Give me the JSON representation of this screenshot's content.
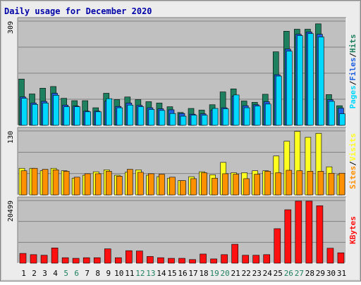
{
  "title": "Daily usage for December 2020",
  "colors": {
    "hits": "#1f8060",
    "files": "#2060e0",
    "pages": "#00d8ff",
    "visits": "#ffff20",
    "sites": "#ff9000",
    "kbytes": "#ff1010",
    "title": "#0000a8",
    "weekend_label": "#1f8060",
    "weekday_label": "#000000"
  },
  "chart_data": [
    {
      "type": "bar",
      "panel": "hits-files-pages",
      "ylabel_parts": [
        "Pages",
        "/",
        "Files",
        "/",
        "Hits"
      ],
      "ymax_label": "309",
      "ylim": [
        0,
        309
      ],
      "categories": [
        "1",
        "2",
        "3",
        "4",
        "5",
        "6",
        "7",
        "8",
        "9",
        "10",
        "11",
        "12",
        "13",
        "14",
        "15",
        "16",
        "17",
        "18",
        "19",
        "20",
        "21",
        "22",
        "23",
        "24",
        "25",
        "26",
        "27",
        "28",
        "29",
        "30",
        "31"
      ],
      "weekend_days": [
        "5",
        "6",
        "12",
        "13",
        "19",
        "20",
        "26",
        "27"
      ],
      "series": [
        {
          "name": "Hits",
          "values": [
            137,
            93,
            110,
            115,
            80,
            73,
            73,
            52,
            95,
            76,
            84,
            76,
            70,
            66,
            55,
            38,
            50,
            45,
            61,
            99,
            108,
            72,
            68,
            92,
            218,
            279,
            285,
            285,
            301,
            91,
            58
          ]
        },
        {
          "name": "Files",
          "values": [
            84,
            66,
            71,
            95,
            60,
            57,
            42,
            42,
            72,
            56,
            66,
            59,
            52,
            49,
            46,
            35,
            33,
            34,
            45,
            52,
            87,
            58,
            61,
            70,
            150,
            226,
            270,
            277,
            270,
            76,
            51
          ]
        },
        {
          "name": "Pages",
          "values": [
            80,
            62,
            66,
            89,
            55,
            55,
            40,
            40,
            79,
            52,
            60,
            55,
            47,
            44,
            35,
            27,
            30,
            30,
            50,
            49,
            90,
            52,
            57,
            63,
            146,
            220,
            266,
            272,
            262,
            71,
            34
          ]
        }
      ]
    },
    {
      "type": "bar",
      "panel": "visits-sites",
      "ylabel_parts": [
        "Sites",
        "/",
        "Visits"
      ],
      "ymax_label": "130",
      "ylim": [
        0,
        130
      ],
      "categories": [
        "1",
        "2",
        "3",
        "4",
        "5",
        "6",
        "7",
        "8",
        "9",
        "10",
        "11",
        "12",
        "13",
        "14",
        "15",
        "16",
        "17",
        "18",
        "19",
        "20",
        "21",
        "22",
        "23",
        "24",
        "25",
        "26",
        "27",
        "28",
        "29",
        "30",
        "31"
      ],
      "series": [
        {
          "name": "Visits",
          "values": [
            54,
            54,
            49,
            54,
            49,
            34,
            40,
            47,
            51,
            40,
            46,
            51,
            40,
            37,
            34,
            29,
            37,
            47,
            41,
            66,
            45,
            45,
            49,
            49,
            79,
            109,
            129,
            117,
            125,
            57,
            41
          ]
        },
        {
          "name": "Sites",
          "values": [
            49,
            54,
            52,
            51,
            48,
            36,
            43,
            43,
            48,
            38,
            52,
            46,
            43,
            42,
            36,
            29,
            33,
            45,
            34,
            43,
            42,
            33,
            42,
            48,
            45,
            50,
            49,
            48,
            48,
            44,
            44
          ]
        }
      ]
    },
    {
      "type": "bar",
      "panel": "kbytes",
      "ylabel_parts": [
        "KBytes"
      ],
      "ymax_label": "20499",
      "ylim": [
        0,
        20499
      ],
      "categories": [
        "1",
        "2",
        "3",
        "4",
        "5",
        "6",
        "7",
        "8",
        "9",
        "10",
        "11",
        "12",
        "13",
        "14",
        "15",
        "16",
        "17",
        "18",
        "19",
        "20",
        "21",
        "22",
        "23",
        "24",
        "25",
        "26",
        "27",
        "28",
        "29",
        "30",
        "31"
      ],
      "series": [
        {
          "name": "KBytes",
          "values": [
            3200,
            2800,
            2600,
            5000,
            1800,
            1600,
            1800,
            1800,
            4700,
            1800,
            4100,
            4000,
            2200,
            1800,
            1600,
            1600,
            1200,
            3000,
            1400,
            2800,
            6200,
            2600,
            2600,
            2800,
            11300,
            17500,
            20300,
            20300,
            18800,
            4900,
            3400
          ]
        }
      ]
    }
  ]
}
